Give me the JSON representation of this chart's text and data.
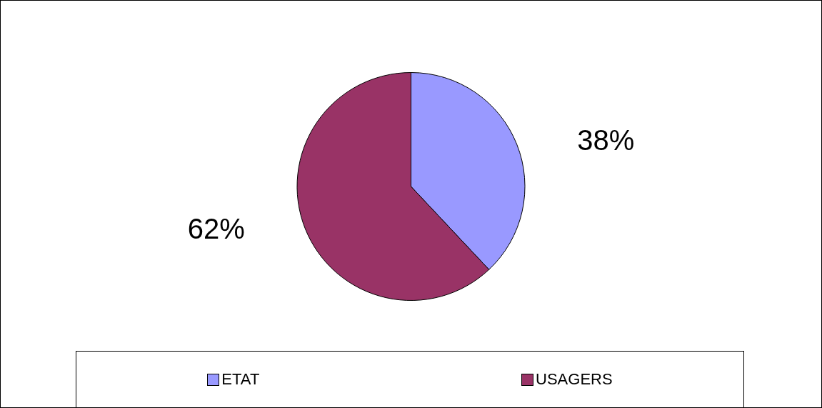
{
  "chart_data": {
    "type": "pie",
    "categories": [
      "ETAT",
      "USAGERS"
    ],
    "values": [
      38,
      62
    ],
    "colors": [
      "#9999ff",
      "#993366"
    ],
    "value_labels": [
      "38%",
      "62%"
    ],
    "legend": "bottom"
  }
}
